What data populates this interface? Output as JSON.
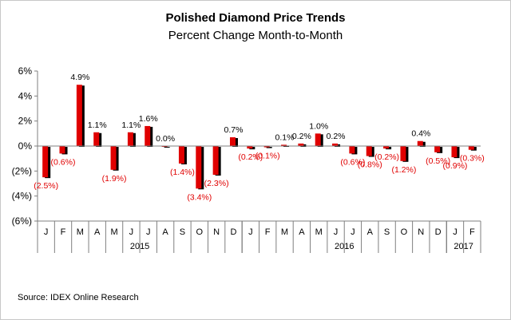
{
  "chart_data": {
    "type": "bar",
    "title": "Polished Diamond Price Trends",
    "subtitle": "Percent Change Month-to-Month",
    "source": "Source: IDEX Online Research",
    "categories": [
      "J",
      "F",
      "M",
      "A",
      "M",
      "J",
      "J",
      "A",
      "S",
      "O",
      "N",
      "D",
      "J",
      "F",
      "M",
      "A",
      "M",
      "J",
      "J",
      "A",
      "S",
      "O",
      "N",
      "D",
      "J",
      "F"
    ],
    "years": [
      {
        "label": "2015",
        "start": 0,
        "count": 12
      },
      {
        "label": "2016",
        "start": 12,
        "count": 12
      },
      {
        "label": "2017",
        "start": 24,
        "count": 2
      }
    ],
    "values": [
      -2.5,
      -0.6,
      4.9,
      1.1,
      -1.9,
      1.1,
      1.6,
      0.0,
      -1.4,
      -3.4,
      -2.3,
      0.7,
      -0.2,
      -0.1,
      0.1,
      0.2,
      1.0,
      0.2,
      -0.6,
      -0.8,
      -0.2,
      -1.2,
      0.4,
      -0.5,
      -0.9,
      -0.3
    ],
    "data_labels": [
      "(2.5%)",
      "(0.6%)",
      "4.9%",
      "1.1%",
      "(1.9%)",
      "1.1%",
      "1.6%",
      "0.0%",
      "(1.4%)",
      "(3.4%)",
      "(2.3%)",
      "0.7%",
      "(0.2%)",
      "(0.1%)",
      "0.1%",
      "0.2%",
      "1.0%",
      "0.2%",
      "(0.6%)",
      "(0.8%)",
      "(0.2%)",
      "(1.2%)",
      "0.4%",
      "(0.5%)",
      "(0.9%)",
      "(0.3%)"
    ],
    "y_ticks": [
      {
        "value": 6,
        "label": "6%"
      },
      {
        "value": 4,
        "label": "4%"
      },
      {
        "value": 2,
        "label": "2%"
      },
      {
        "value": 0,
        "label": "0%"
      },
      {
        "value": -2,
        "label": "(2%)"
      },
      {
        "value": -4,
        "label": "(4%)"
      },
      {
        "value": -6,
        "label": "(6%)"
      }
    ],
    "ylim": [
      -6,
      6
    ],
    "grid": false,
    "colors": {
      "bar": "#e00000",
      "bar_shadow": "#000000",
      "negative_label": "#e00000",
      "positive_label": "#000000",
      "axis": "#7f7f7f"
    }
  }
}
